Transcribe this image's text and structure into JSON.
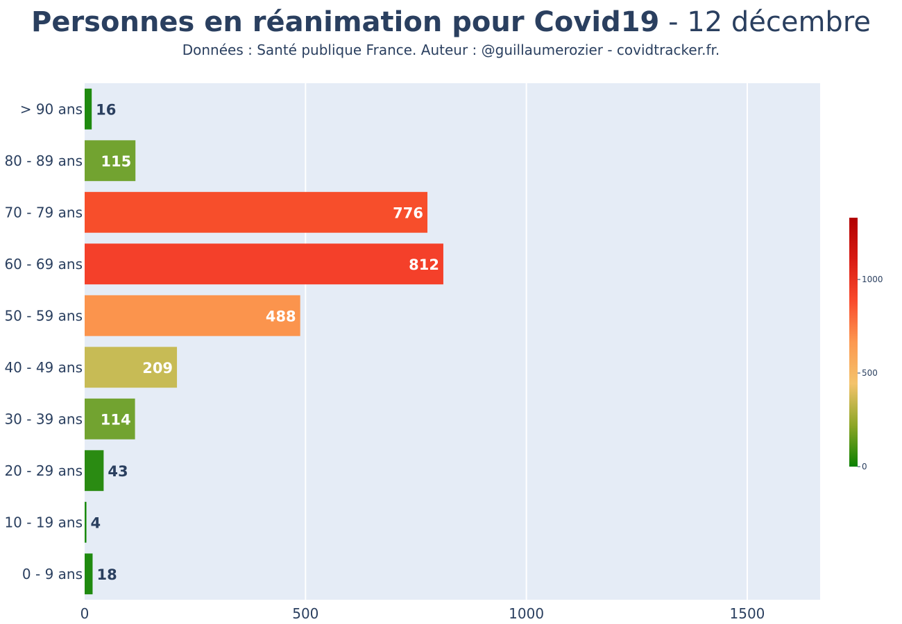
{
  "title": {
    "bold": "Personnes en réanimation pour Covid19",
    "rest": " - 12 décembre"
  },
  "subtitle": "Données : Santé publique France. Auteur : @guillaumerozier - covidtracker.fr.",
  "chart_data": {
    "type": "bar",
    "orientation": "horizontal",
    "categories": [
      "> 90 ans",
      "80 - 89 ans",
      "70 - 79 ans",
      "60 - 69 ans",
      "50 - 59 ans",
      "40 - 49 ans",
      "30 - 39 ans",
      "20 - 29 ans",
      "10 - 19 ans",
      "0 - 9 ans"
    ],
    "values": [
      16,
      115,
      776,
      812,
      488,
      209,
      114,
      43,
      4,
      18
    ],
    "colors": [
      "#1f8a0f",
      "#72a330",
      "#f74e2b",
      "#f4402a",
      "#fb944d",
      "#c7bb55",
      "#72a330",
      "#2a8b12",
      "#1a8a0d",
      "#1f8a0f"
    ],
    "xlim": [
      0,
      1665
    ],
    "xticks": [
      0,
      500,
      1000,
      1500
    ],
    "grid": true,
    "colorscale": {
      "stops": [
        "#0a8000",
        "#8da626",
        "#f4c36b",
        "#fc9850",
        "#f94a2c",
        "#d81b13",
        "#b10000"
      ],
      "range": [
        0,
        1330
      ],
      "ticks": [
        0,
        500,
        1000
      ]
    },
    "plot_bg": "#e5ecf6",
    "text_color": "#2a3f5f"
  }
}
